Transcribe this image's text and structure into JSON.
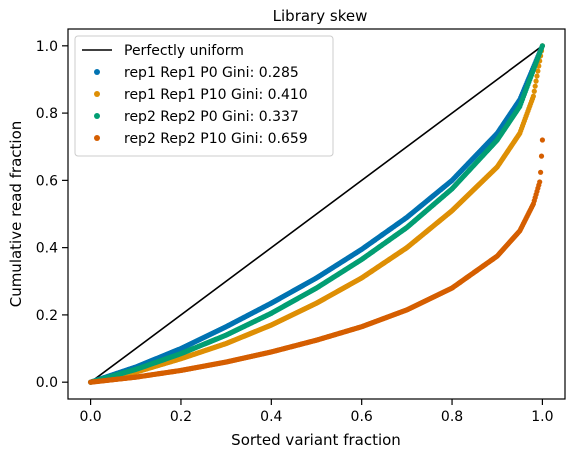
{
  "chart_data": {
    "type": "scatter",
    "title": "Library skew",
    "xlabel": "Sorted variant fraction",
    "ylabel": "Cumulative read fraction",
    "xlim": [
      -0.05,
      1.05
    ],
    "ylim": [
      -0.05,
      1.05
    ],
    "xticks": [
      0.0,
      0.2,
      0.4,
      0.6,
      0.8,
      1.0
    ],
    "yticks": [
      0.0,
      0.2,
      0.4,
      0.6,
      0.8,
      1.0
    ],
    "xtick_labels": [
      "0.0",
      "0.2",
      "0.4",
      "0.6",
      "0.8",
      "1.0"
    ],
    "ytick_labels": [
      "0.0",
      "0.2",
      "0.4",
      "0.6",
      "0.8",
      "1.0"
    ],
    "grid": false,
    "legend_position": "top-left",
    "reference_line": {
      "name": "Perfectly uniform",
      "color": "#000000",
      "x": [
        0.0,
        1.0
      ],
      "y": [
        0.0,
        1.0
      ]
    },
    "series": [
      {
        "name": "rep1 Rep1 P0 Gini: 0.285",
        "color": "#0173b2",
        "x": [
          0.0,
          0.1,
          0.2,
          0.3,
          0.4,
          0.5,
          0.6,
          0.7,
          0.8,
          0.9,
          0.95,
          1.0
        ],
        "y": [
          0.0,
          0.045,
          0.1,
          0.165,
          0.235,
          0.31,
          0.395,
          0.49,
          0.6,
          0.74,
          0.84,
          1.0
        ]
      },
      {
        "name": "rep1 Rep1 P10 Gini: 0.410",
        "color": "#de8f05",
        "x": [
          0.0,
          0.1,
          0.2,
          0.3,
          0.4,
          0.5,
          0.6,
          0.7,
          0.8,
          0.9,
          0.95,
          0.98,
          1.0
        ],
        "y": [
          0.0,
          0.03,
          0.07,
          0.115,
          0.17,
          0.235,
          0.31,
          0.4,
          0.51,
          0.64,
          0.74,
          0.85,
          1.0
        ]
      },
      {
        "name": "rep2 Rep2 P0 Gini: 0.337",
        "color": "#029e73",
        "x": [
          0.0,
          0.1,
          0.2,
          0.3,
          0.4,
          0.5,
          0.6,
          0.7,
          0.8,
          0.9,
          0.95,
          1.0
        ],
        "y": [
          0.0,
          0.038,
          0.085,
          0.14,
          0.205,
          0.28,
          0.365,
          0.46,
          0.575,
          0.72,
          0.82,
          1.0
        ]
      },
      {
        "name": "rep2 Rep2 P10 Gini: 0.659",
        "color": "#d55e00",
        "x": [
          0.0,
          0.1,
          0.2,
          0.3,
          0.4,
          0.5,
          0.6,
          0.7,
          0.8,
          0.9,
          0.95,
          0.98,
          0.995,
          1.0
        ],
        "y": [
          0.0,
          0.015,
          0.035,
          0.06,
          0.09,
          0.125,
          0.165,
          0.215,
          0.28,
          0.375,
          0.45,
          0.53,
          0.6,
          0.72
        ]
      }
    ]
  }
}
